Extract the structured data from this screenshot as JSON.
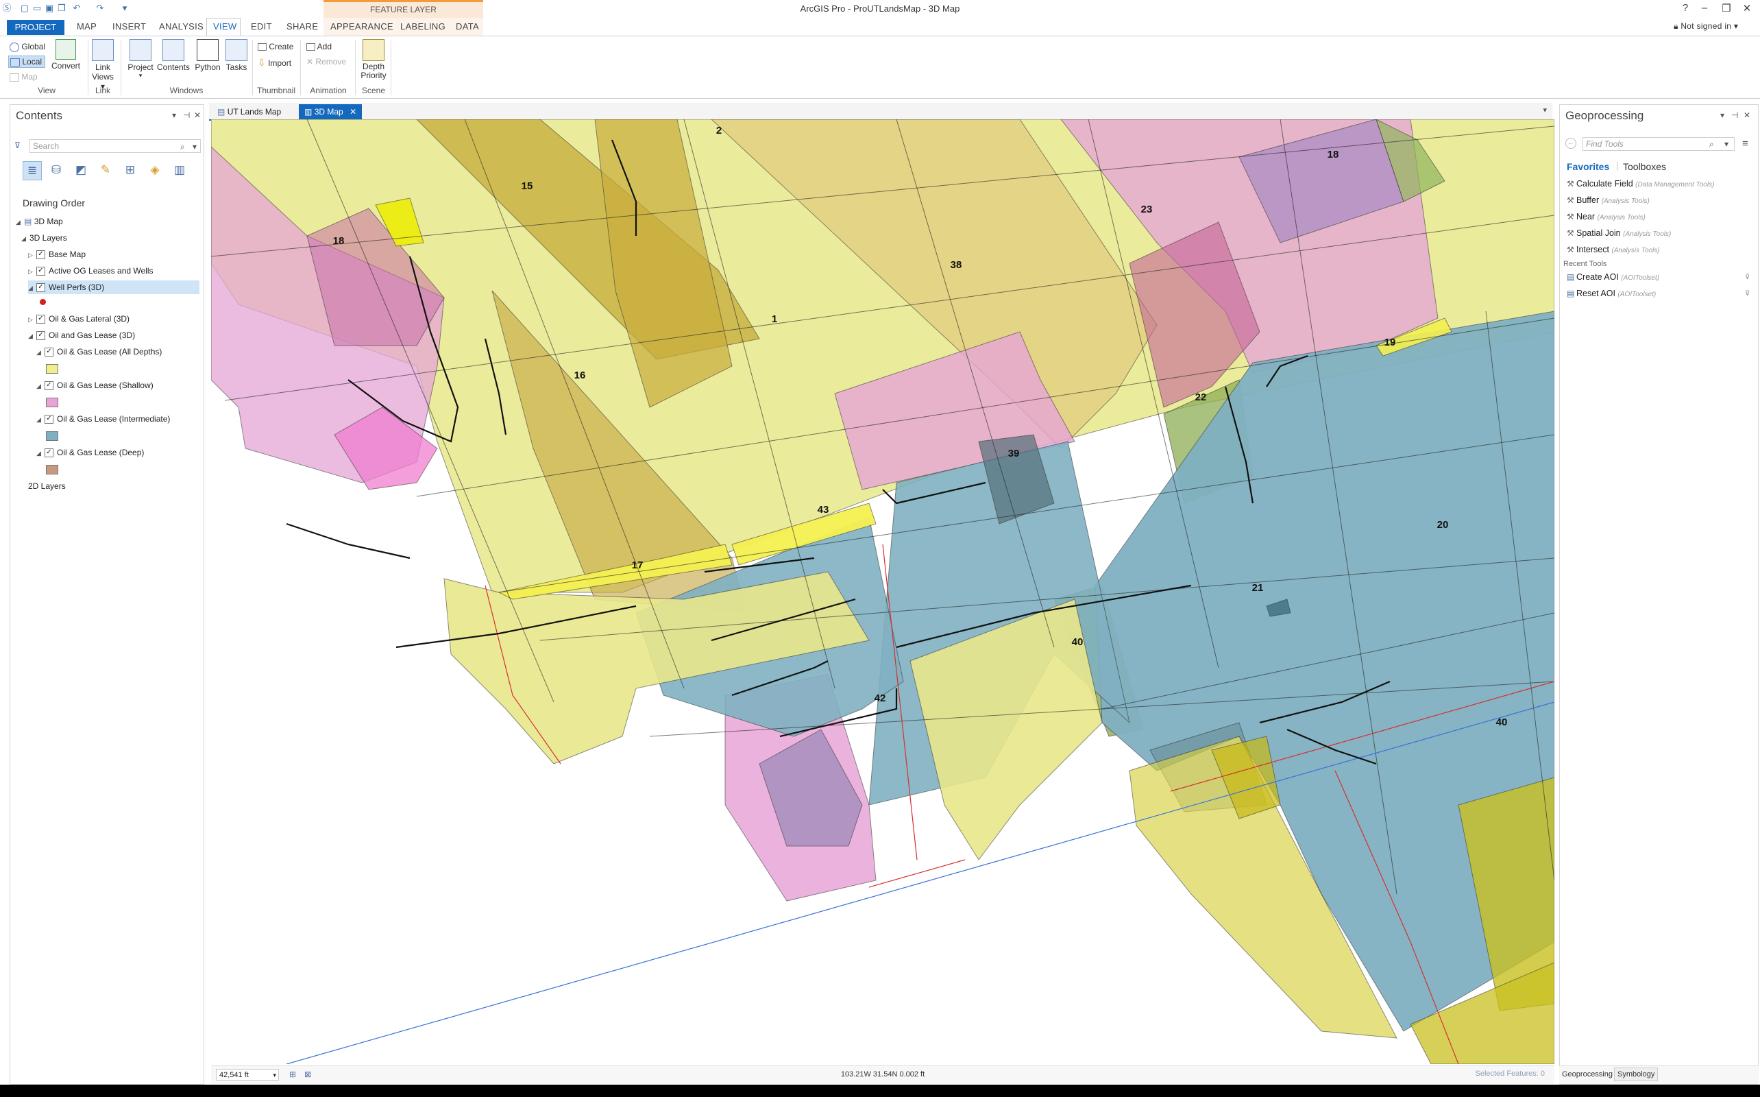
{
  "app": {
    "title": "ArcGIS Pro - ProUTLandsMap - 3D Map",
    "contextual_tab_group": "FEATURE LAYER",
    "sign_in": "Not signed in",
    "help": "?"
  },
  "ribbon_tabs": [
    "PROJECT",
    "MAP",
    "INSERT",
    "ANALYSIS",
    "VIEW",
    "EDIT",
    "SHARE",
    "APPEARANCE",
    "LABELING",
    "DATA"
  ],
  "active_tab": "VIEW",
  "ribbon": {
    "view_group": {
      "global": "Global",
      "local": "Local",
      "map": "Map",
      "convert": "Convert",
      "label": "View"
    },
    "link_group": {
      "link_views": "Link Views",
      "label": "Link"
    },
    "windows_group": {
      "project": "Project",
      "contents": "Contents",
      "python": "Python",
      "tasks": "Tasks",
      "label": "Windows"
    },
    "thumbnail_group": {
      "create": "Create",
      "import": "Import",
      "label": "Thumbnail"
    },
    "animation_group": {
      "add": "Add",
      "remove": "Remove",
      "label": "Animation"
    },
    "scene_group": {
      "depth_priority": "Depth Priority",
      "label": "Scene"
    }
  },
  "contents": {
    "title": "Contents",
    "search_placeholder": "Search",
    "drawing_order": "Drawing Order",
    "items": {
      "map": "3D Map",
      "layers3d": "3D Layers",
      "base_map": "Base Map",
      "active_og": "Active OG Leases and Wells",
      "well_perfs": "Well Perfs (3D)",
      "lateral": "Oil & Gas Lateral (3D)",
      "lease": "Oil and Gas Lease (3D)",
      "all_depths": "Oil & Gas Lease (All Depths)",
      "shallow": "Oil & Gas Lease (Shallow)",
      "intermediate": "Oil & Gas Lease (Intermediate)",
      "deep": "Oil & Gas Lease (Deep)",
      "layers2d": "2D Layers"
    },
    "swatch_colors": {
      "well_perfs": "#d42020",
      "all_depths": "#f1ef8c",
      "shallow": "#eaa2d9",
      "intermediate": "#7fb0c1",
      "deep": "#c69a7e"
    }
  },
  "map_tabs": [
    {
      "label": "UT Lands Map",
      "active": false
    },
    {
      "label": "3D Map",
      "active": true
    }
  ],
  "map_labels": [
    "2",
    "15",
    "18",
    "1",
    "38",
    "16",
    "23",
    "18",
    "19",
    "22",
    "39",
    "43",
    "17",
    "20",
    "21",
    "40",
    "42",
    "40"
  ],
  "status": {
    "scale": "42,541 ft",
    "coords": "103.21W 31.54N  0.002 ft",
    "selected": "Selected Features: 0"
  },
  "geoprocessing": {
    "title": "Geoprocessing",
    "search_placeholder": "Find Tools",
    "tabs": {
      "favorites": "Favorites",
      "toolboxes": "Toolboxes"
    },
    "favorites": [
      {
        "name": "Calculate Field",
        "toolbox": "(Data Management Tools)"
      },
      {
        "name": "Buffer",
        "toolbox": "(Analysis Tools)"
      },
      {
        "name": "Near",
        "toolbox": "(Analysis Tools)"
      },
      {
        "name": "Spatial Join",
        "toolbox": "(Analysis Tools)"
      },
      {
        "name": "Intersect",
        "toolbox": "(Analysis Tools)"
      }
    ],
    "recent_label": "Recent Tools",
    "recent": [
      {
        "name": "Create AOI",
        "toolbox": "(AOIToolset)"
      },
      {
        "name": "Reset AOI",
        "toolbox": "(AOIToolset)"
      }
    ]
  },
  "bottom_tabs": {
    "geoprocessing": "Geoprocessing",
    "symbology": "Symbology"
  }
}
